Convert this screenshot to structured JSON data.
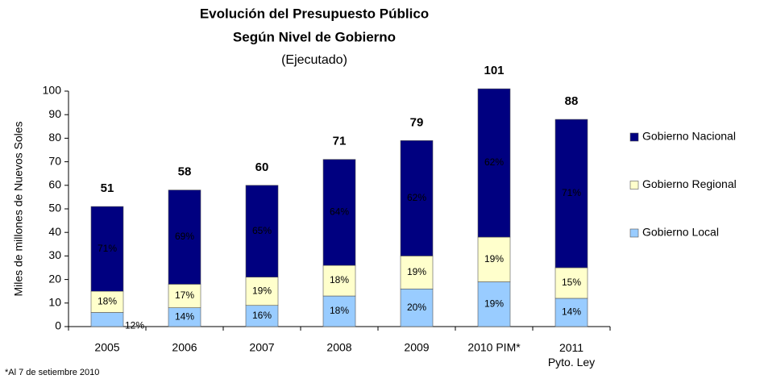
{
  "chart_data": {
    "type": "stacked_bar",
    "title": "Evolución del Presupuesto Público",
    "subtitle": "Según Nivel de Gobierno",
    "subtitle2": "(Ejecutado)",
    "y_label": "Miles de millones de Nuevos Soles",
    "note": "*Al 7 de setiembre 2010",
    "categories": [
      "2005",
      "2006",
      "2007",
      "2008",
      "2009",
      "2010 PIM*",
      "2011\nPyto. Ley"
    ],
    "series": [
      {
        "name": "Gobierno Local",
        "color": "#99ccff",
        "values": [
          6,
          8,
          9,
          13,
          16,
          19,
          12
        ],
        "labels": [
          "12%",
          "14%",
          "16%",
          "18%",
          "20%",
          "19%",
          "14%"
        ]
      },
      {
        "name": "Gobierno Regional",
        "color": "#ffffcc",
        "values": [
          9,
          10,
          12,
          13,
          14,
          19,
          13
        ],
        "labels": [
          "18%",
          "17%",
          "19%",
          "18%",
          "19%",
          "19%",
          "15%"
        ]
      },
      {
        "name": "Gobierno Nacional",
        "color": "#000080",
        "values": [
          36,
          40,
          39,
          45,
          49,
          63,
          63
        ],
        "labels": [
          "71%",
          "69%",
          "65%",
          "64%",
          "62%",
          "62%",
          "71%"
        ]
      }
    ],
    "totals": [
      51,
      58,
      60,
      71,
      79,
      101,
      88
    ],
    "ylim": [
      0,
      100
    ],
    "yticks": [
      0,
      10,
      20,
      30,
      40,
      50,
      60,
      70,
      80,
      90,
      100
    ],
    "legend": "right"
  }
}
